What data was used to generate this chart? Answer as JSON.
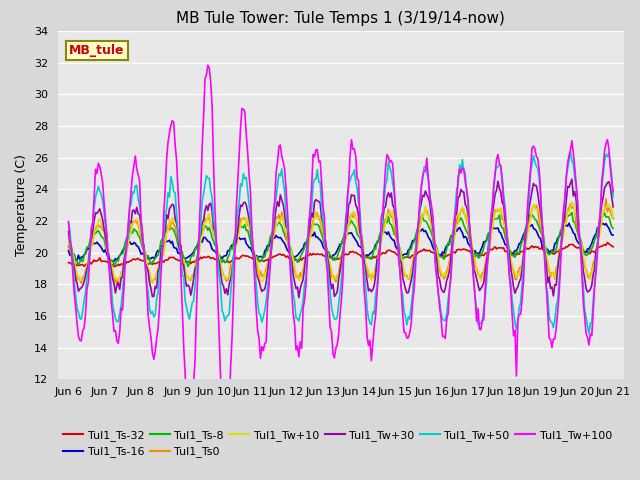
{
  "title": "MB Tule Tower: Tule Temps 1 (3/19/14-now)",
  "ylabel": "Temperature (C)",
  "ylim": [
    12,
    34
  ],
  "yticks": [
    12,
    14,
    16,
    18,
    20,
    22,
    24,
    26,
    28,
    30,
    32,
    34
  ],
  "xlim": [
    5.7,
    21.3
  ],
  "xtick_labels": [
    "Jun 6",
    "Jun 7",
    "Jun 8",
    "Jun 9",
    "Jun 10",
    "Jun 11",
    "Jun 12",
    "Jun 13",
    "Jun 14",
    "Jun 15",
    "Jun 16",
    "Jun 17",
    "Jun 18",
    "Jun 19",
    "Jun 20",
    "Jun 21"
  ],
  "xtick_positions": [
    6,
    7,
    8,
    9,
    10,
    11,
    12,
    13,
    14,
    15,
    16,
    17,
    18,
    19,
    20,
    21
  ],
  "series_colors": {
    "Tul1_Ts-32": "#dd0000",
    "Tul1_Ts-16": "#0000cc",
    "Tul1_Ts-8": "#00bb00",
    "Tul1_Ts0": "#ff8800",
    "Tul1_Tw+10": "#dddd00",
    "Tul1_Tw+30": "#9900aa",
    "Tul1_Tw+50": "#00cccc",
    "Tul1_Tw+100": "#ff00ff"
  },
  "annotation_text": "MB_tule",
  "annotation_color": "#cc0000",
  "annotation_bg": "#ffffcc",
  "annotation_border": "#888800",
  "fig_bg": "#d8d8d8",
  "ax_bg": "#e8e8e8",
  "grid_color": "#ffffff",
  "title_fontsize": 11,
  "axis_fontsize": 9,
  "tick_fontsize": 8,
  "legend_fontsize": 8
}
